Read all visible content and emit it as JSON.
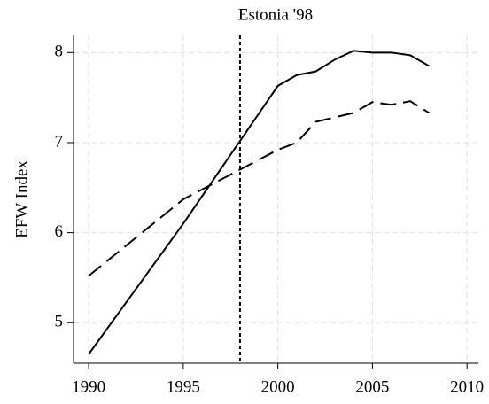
{
  "chart_data": {
    "type": "line",
    "title": "Estonia '98",
    "y_label": "EFW Index",
    "x": [
      1990,
      1995,
      2000,
      2001,
      2002,
      2003,
      2004,
      2005,
      2006,
      2007,
      2008
    ],
    "series": [
      {
        "color": "#000000",
        "style": "solid",
        "values": [
          4.65,
          6.1,
          7.63,
          7.75,
          7.79,
          7.92,
          8.02,
          8.0,
          8.0,
          7.97,
          7.85
        ]
      },
      {
        "color": "#000000",
        "style": "dashed",
        "values": [
          5.52,
          6.37,
          6.92,
          7.0,
          7.23,
          7.28,
          7.33,
          7.45,
          7.42,
          7.46,
          7.33
        ]
      }
    ],
    "vlines": [
      1998
    ],
    "xlim": [
      1989.2,
      2010.6
    ],
    "ylim": [
      4.55,
      8.19
    ],
    "xticks": [
      1990,
      1995,
      2000,
      2005,
      2010
    ],
    "yticks": [
      5,
      6,
      7,
      8
    ],
    "grid": true
  }
}
